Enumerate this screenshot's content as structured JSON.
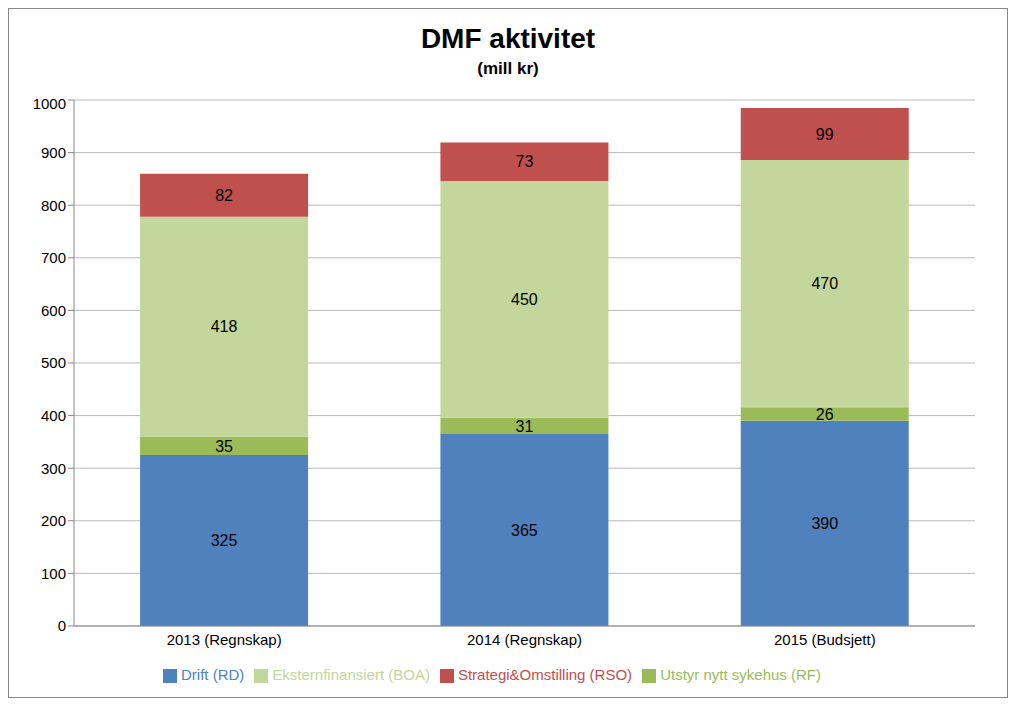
{
  "chart_data": {
    "type": "bar",
    "title": "DMF aktivitet",
    "subtitle": "(mill kr)",
    "categories": [
      "2013 (Regnskap)",
      "2014 (Regnskap)",
      "2015 (Budsjett)"
    ],
    "series": [
      {
        "name": "Drift (RD)",
        "color": "#4f81bd",
        "values": [
          325,
          365,
          390
        ]
      },
      {
        "name": "Utstyr nytt sykehus (RF)",
        "color": "#9bbb59",
        "values": [
          35,
          31,
          26
        ]
      },
      {
        "name": "Eksternfinansiert (BOA)",
        "color": "#c3d69b",
        "values": [
          418,
          450,
          470
        ]
      },
      {
        "name": "Strategi&Omstilling (RSO)",
        "color": "#c0504d",
        "values": [
          82,
          73,
          99
        ]
      }
    ],
    "ylim": [
      0,
      1000
    ],
    "yticks": [
      0,
      100,
      200,
      300,
      400,
      500,
      600,
      700,
      800,
      900,
      1000
    ],
    "grid": true,
    "stacked": true,
    "data_labels": true,
    "legend": "bottom"
  }
}
